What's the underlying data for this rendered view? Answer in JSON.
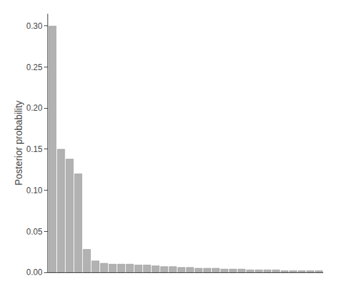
{
  "chart_data": {
    "type": "bar",
    "ylabel": "Posterior probability",
    "categories": [
      null,
      null,
      null,
      null,
      null,
      null,
      null,
      null,
      null,
      null,
      null,
      null,
      null,
      null,
      null,
      null,
      null,
      null,
      null,
      null,
      null,
      null,
      null,
      null,
      null,
      null,
      null,
      null,
      null,
      null,
      null,
      null
    ],
    "values": [
      0.3,
      0.15,
      0.138,
      0.12,
      0.028,
      0.014,
      0.011,
      0.01,
      0.01,
      0.01,
      0.009,
      0.009,
      0.008,
      0.007,
      0.007,
      0.006,
      0.006,
      0.005,
      0.005,
      0.005,
      0.004,
      0.004,
      0.004,
      0.003,
      0.003,
      0.003,
      0.003,
      0.002,
      0.002,
      0.002,
      0.002,
      0.002
    ],
    "color": "#b2b2b2",
    "ylim": [
      0,
      0.315
    ],
    "yticks": [
      {
        "value": 0,
        "label": "0.00"
      },
      0.05,
      {
        "value": 0.1,
        "label": "0.10"
      },
      0.15,
      {
        "value": 0.2,
        "label": "0.20"
      },
      0.25,
      {
        "value": 0.3,
        "label": "0.30"
      }
    ],
    "grid": false,
    "tick_labels": "y"
  }
}
